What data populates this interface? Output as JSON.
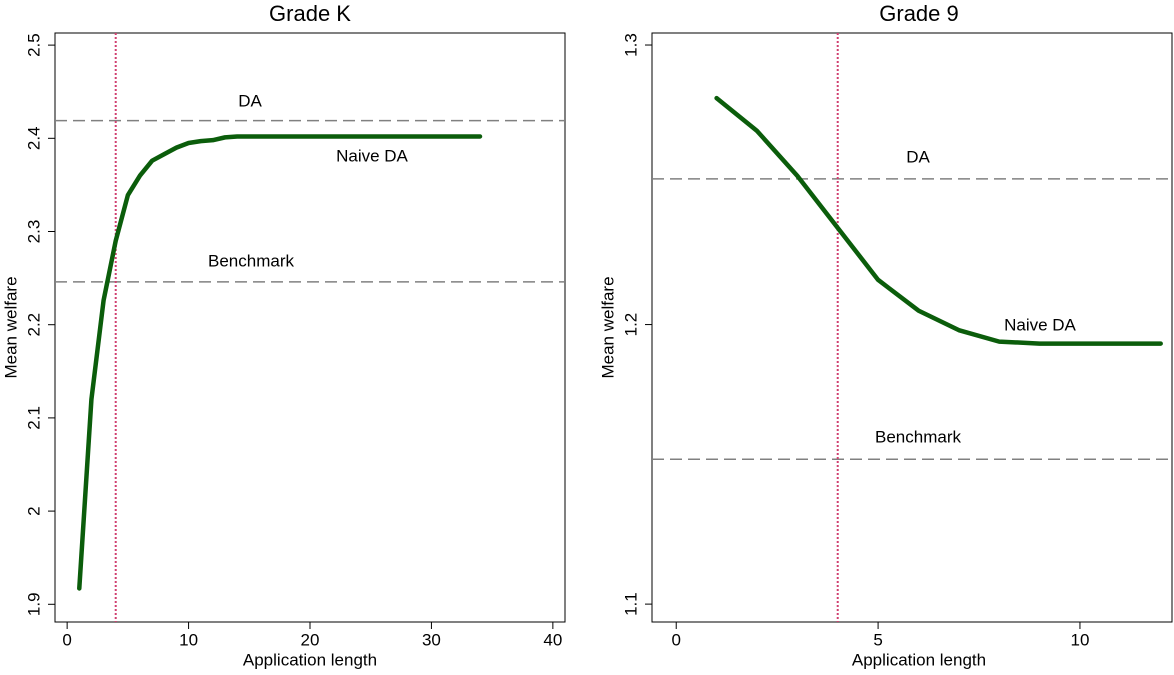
{
  "chart_data": [
    {
      "type": "line",
      "title": "Grade K",
      "xlabel": "Application length",
      "ylabel": "Mean welfare",
      "x": [
        1,
        2,
        3,
        4,
        5,
        6,
        7,
        8,
        9,
        10,
        11,
        12,
        13,
        14,
        15,
        16,
        17,
        18,
        19,
        20,
        21,
        22,
        23,
        24,
        25,
        26,
        27,
        28,
        29,
        30,
        31,
        32,
        33,
        34
      ],
      "series": [
        {
          "name": "Naive DA",
          "color": "#0b5d0b",
          "values": [
            1.917,
            2.12,
            2.226,
            2.29,
            2.339,
            2.36,
            2.376,
            2.383,
            2.39,
            2.395,
            2.397,
            2.398,
            2.401,
            2.402,
            2.402,
            2.402,
            2.402,
            2.402,
            2.402,
            2.402,
            2.402,
            2.402,
            2.402,
            2.402,
            2.402,
            2.402,
            2.402,
            2.402,
            2.402,
            2.402,
            2.402,
            2.402,
            2.402,
            2.402
          ]
        }
      ],
      "hlines": [
        {
          "label": "DA",
          "value": 2.419
        },
        {
          "label": "Benchmark",
          "value": 2.246
        }
      ],
      "vline": 4,
      "vline_color": "#d04070",
      "hline_color": "#808080",
      "xlim": [
        -1,
        41
      ],
      "ylim": [
        1.881,
        2.513
      ],
      "xticks": [
        0,
        10,
        20,
        30,
        40
      ],
      "yticks": [
        1.9,
        2,
        2.1,
        2.2,
        2.3,
        2.4,
        2.5
      ]
    },
    {
      "type": "line",
      "title": "Grade 9",
      "xlabel": "Application length",
      "ylabel": "Mean welfare",
      "x": [
        1,
        2,
        3,
        4,
        5,
        6,
        7,
        8,
        9,
        10,
        11,
        12
      ],
      "series": [
        {
          "name": "Naive DA",
          "color": "#0b5d0b",
          "values": [
            1.281,
            1.2693,
            1.2532,
            1.2346,
            1.216,
            1.205,
            1.198,
            1.1939,
            1.1932,
            1.1932,
            1.1932,
            1.1932
          ]
        }
      ],
      "hlines": [
        {
          "label": "DA",
          "value": 1.2521
        },
        {
          "label": "Benchmark",
          "value": 1.1518
        }
      ],
      "vline": 4,
      "vline_color": "#d04070",
      "hline_color": "#808080",
      "xlim": [
        -0.6,
        12.28
      ],
      "ylim": [
        1.0936,
        1.3043
      ],
      "xticks": [
        0,
        5,
        10
      ],
      "yticks": [
        1.1,
        1.2,
        1.3
      ]
    }
  ]
}
